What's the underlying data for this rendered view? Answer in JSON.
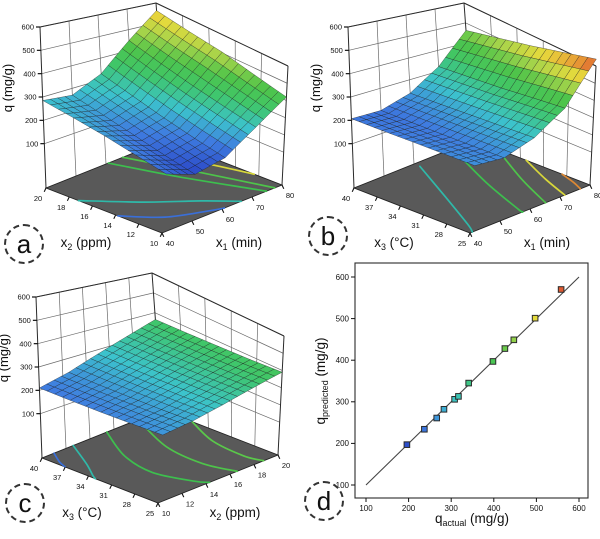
{
  "panel_labels": [
    {
      "letter": "a"
    },
    {
      "letter": "b"
    },
    {
      "letter": "c"
    },
    {
      "letter": "d"
    }
  ],
  "colors": {
    "floor": "#595959",
    "wall_grid": "#6a6a6a",
    "frame": "#2a2a2a",
    "identity_line": "#444444",
    "marker_stroke": "#2a2a2a",
    "colormap_stops": [
      [
        0,
        "#2840c4"
      ],
      [
        0.16,
        "#3f7de0"
      ],
      [
        0.3,
        "#3cc3cc"
      ],
      [
        0.45,
        "#3fc66b"
      ],
      [
        0.58,
        "#4ec44a"
      ],
      [
        0.7,
        "#a8d44a"
      ],
      [
        0.8,
        "#e6da3c"
      ],
      [
        0.9,
        "#e89a34"
      ],
      [
        1,
        "#d63030"
      ]
    ],
    "surface_color_domain": [
      135,
      640
    ],
    "scatter_color_domain": [
      180,
      580
    ]
  },
  "chart_data": [
    {
      "id": "a",
      "type": "surface3d",
      "z_axis": {
        "label": {
          "base": "q",
          "sub": "",
          "rest": " (mg/g)"
        },
        "ticks": [
          100,
          200,
          300,
          400,
          500,
          600
        ]
      },
      "bottom_right_axis": {
        "label": {
          "base": "x",
          "sub": "1",
          "rest": " (min)"
        },
        "ticks": [
          40,
          50,
          60,
          70,
          80
        ]
      },
      "bottom_left_axis": {
        "label": {
          "base": "x",
          "sub": "2",
          "rest": " (ppm)"
        },
        "ticks": [
          10,
          12,
          14,
          16,
          18,
          20
        ]
      },
      "surface": {
        "x_values": [
          40,
          50,
          60,
          70,
          80
        ],
        "y_values": [
          10,
          12.5,
          15,
          17.5,
          20
        ],
        "z": [
          [
            195,
            145,
            180,
            295,
            420
          ],
          [
            222,
            175,
            212,
            330,
            462
          ],
          [
            248,
            208,
            248,
            365,
            505
          ],
          [
            268,
            240,
            288,
            405,
            532
          ],
          [
            285,
            270,
            328,
            448,
            562
          ]
        ]
      },
      "floor_contours": [
        {
          "color": "#3a6fd8",
          "points": [
            [
              0,
              0.38
            ],
            [
              0.18,
              0.16
            ],
            [
              0.42,
              0.04
            ],
            [
              0.52,
              0
            ]
          ]
        },
        {
          "color": "#2fb9a9",
          "points": [
            [
              0,
              0.72
            ],
            [
              0.25,
              0.42
            ],
            [
              0.5,
              0.18
            ],
            [
              0.66,
              0
            ]
          ]
        },
        {
          "color": "#3dbf4e",
          "points": [
            [
              0.52,
              1
            ],
            [
              0.66,
              0.55
            ],
            [
              0.84,
              0.08
            ],
            [
              0.87,
              0
            ]
          ]
        },
        {
          "color": "#4ec44a",
          "points": [
            [
              0.64,
              1
            ],
            [
              0.79,
              0.52
            ],
            [
              0.94,
              0
            ]
          ]
        },
        {
          "color": "#d8d83a",
          "points": [
            [
              0.78,
              1
            ],
            [
              0.92,
              0.55
            ],
            [
              1,
              0.24
            ]
          ]
        }
      ]
    },
    {
      "id": "b",
      "type": "surface3d",
      "z_axis": {
        "label": {
          "base": "q",
          "sub": "",
          "rest": " (mg/g)"
        },
        "ticks": [
          100,
          200,
          300,
          400,
          500,
          600
        ]
      },
      "bottom_right_axis": {
        "label": {
          "base": "x",
          "sub": "1",
          "rest": " (min)"
        },
        "ticks": [
          40,
          50,
          60,
          70,
          80
        ]
      },
      "bottom_left_axis": {
        "label": {
          "base": "x",
          "sub": "3",
          "rest": " (°C)"
        },
        "ticks": [
          25,
          28,
          31,
          34,
          37,
          40
        ]
      },
      "surface": {
        "x_values": [
          40,
          50,
          60,
          70,
          80
        ],
        "y_values": [
          25,
          28.75,
          32.5,
          36.25,
          40
        ],
        "z": [
          [
            235,
            228,
            285,
            400,
            640
          ],
          [
            228,
            220,
            272,
            378,
            588
          ],
          [
            221,
            213,
            260,
            355,
            540
          ],
          [
            213,
            207,
            248,
            338,
            500
          ],
          [
            207,
            202,
            238,
            322,
            462
          ]
        ]
      },
      "floor_contours": [
        {
          "color": "#2fb9a9",
          "points": [
            [
              0.5,
              0.95
            ],
            [
              0.28,
              0.5
            ],
            [
              0.08,
              0.1
            ],
            [
              0.02,
              0
            ]
          ]
        },
        {
          "color": "#3dbf4e",
          "points": [
            [
              0.8,
              0.95
            ],
            [
              0.6,
              0.48
            ],
            [
              0.45,
              0.05
            ],
            [
              0.44,
              0
            ]
          ]
        },
        {
          "color": "#4ec44a",
          "points": [
            [
              1,
              0.8
            ],
            [
              0.78,
              0.36
            ],
            [
              0.63,
              0
            ]
          ]
        },
        {
          "color": "#d8d83a",
          "points": [
            [
              1,
              0.55
            ],
            [
              0.88,
              0.26
            ],
            [
              0.79,
              0
            ]
          ]
        },
        {
          "color": "#dd8833",
          "points": [
            [
              1,
              0.24
            ],
            [
              0.96,
              0.1
            ],
            [
              0.92,
              0
            ]
          ]
        }
      ]
    },
    {
      "id": "c",
      "type": "surface3d",
      "z_axis": {
        "label": {
          "base": "q",
          "sub": "",
          "rest": " (mg/g)"
        },
        "ticks": [
          100,
          200,
          300,
          400,
          500,
          600
        ]
      },
      "bottom_right_axis": {
        "label": {
          "base": "x",
          "sub": "2",
          "rest": " (ppm)"
        },
        "ticks": [
          10,
          12,
          14,
          16,
          18,
          20
        ]
      },
      "bottom_left_axis": {
        "label": {
          "base": "x",
          "sub": "3",
          "rest": " (°C)"
        },
        "ticks": [
          25,
          28,
          31,
          34,
          37,
          40
        ]
      },
      "surface": {
        "x_values": [
          10,
          12.5,
          15,
          17.5,
          20
        ],
        "y_values": [
          25,
          28.75,
          32.5,
          36.25,
          40
        ],
        "z": [
          [
            238,
            262,
            300,
            345,
            390
          ],
          [
            228,
            252,
            292,
            336,
            380
          ],
          [
            220,
            246,
            286,
            330,
            374
          ],
          [
            214,
            241,
            282,
            325,
            369
          ],
          [
            210,
            238,
            280,
            322,
            366
          ]
        ]
      },
      "floor_contours": [
        {
          "color": "#3a6fd8",
          "points": [
            [
              0.1,
              1
            ],
            [
              0.03,
              0.88
            ],
            [
              0,
              0.8
            ]
          ]
        },
        {
          "color": "#2fb9a9",
          "points": [
            [
              0.26,
              1
            ],
            [
              0.12,
              0.74
            ],
            [
              0.02,
              0.58
            ],
            [
              0,
              0.54
            ]
          ]
        },
        {
          "color": "#3dbf4e",
          "points": [
            [
              0.54,
              1
            ],
            [
              0.36,
              0.66
            ],
            [
              0.3,
              0.36
            ],
            [
              0.38,
              0.08
            ],
            [
              0.43,
              0
            ]
          ]
        },
        {
          "color": "#4ec44a",
          "points": [
            [
              0.8,
              1
            ],
            [
              0.63,
              0.58
            ],
            [
              0.6,
              0.24
            ],
            [
              0.66,
              0
            ]
          ]
        },
        {
          "color": "#5ac84a",
          "points": [
            [
              1,
              0.74
            ],
            [
              0.88,
              0.44
            ],
            [
              0.85,
              0.14
            ],
            [
              0.88,
              0
            ]
          ]
        }
      ]
    },
    {
      "id": "d",
      "type": "scatter",
      "x_axis": {
        "label": {
          "base": "q",
          "sub": "actual",
          "rest": " (mg/g)"
        },
        "ticks": [
          100,
          200,
          300,
          400,
          500,
          600
        ]
      },
      "y_axis": {
        "label": {
          "base": "q",
          "sub": "predicted",
          "rest": " (mg/g)"
        },
        "ticks": [
          100,
          200,
          300,
          400,
          500,
          600
        ]
      },
      "xlim": [
        100,
        600
      ],
      "ylim": [
        100,
        600
      ],
      "identity_line": [
        [
          100,
          100
        ],
        [
          600,
          600
        ]
      ],
      "points": [
        [
          196,
          197
        ],
        [
          237,
          234
        ],
        [
          266,
          261
        ],
        [
          283,
          282
        ],
        [
          308,
          306
        ],
        [
          317,
          313
        ],
        [
          341,
          345
        ],
        [
          398,
          397
        ],
        [
          426,
          428
        ],
        [
          447,
          449
        ],
        [
          497,
          501
        ],
        [
          558,
          570
        ]
      ]
    }
  ]
}
